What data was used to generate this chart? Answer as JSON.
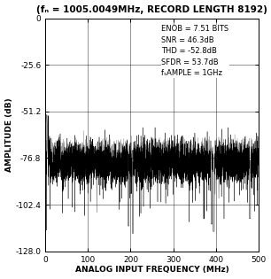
{
  "title": "(fₙ = 1005.0049MHz, RECORD LENGTH 8192)",
  "xlabel": "ANALOG INPUT FREQUENCY (MHz)",
  "ylabel": "AMPLITUDE (dB)",
  "xlim": [
    0,
    500
  ],
  "ylim": [
    -128.0,
    0
  ],
  "yticks": [
    0,
    -25.6,
    -51.2,
    -76.8,
    -102.4,
    -128.0
  ],
  "xticks": [
    0,
    100,
    200,
    300,
    400,
    500
  ],
  "annot_line1": "ENOB = 7.51 BITS",
  "annot_line2": "SNR = 46.3dB",
  "annot_line3": "THD = -52.8dB",
  "annot_line4": "SFDR = 53.7dB",
  "annot_line5": "fₛAMPLE = 1GHz",
  "noise_floor_mean": -79.5,
  "noise_floor_std": 5.5,
  "bg_color": "#ffffff",
  "grid_color": "#000000",
  "noise_color_dark": "#000000",
  "noise_color_light": "#888888",
  "title_fontsize": 7.5,
  "label_fontsize": 6.5,
  "tick_fontsize": 6.5,
  "annot_fontsize": 6.0
}
